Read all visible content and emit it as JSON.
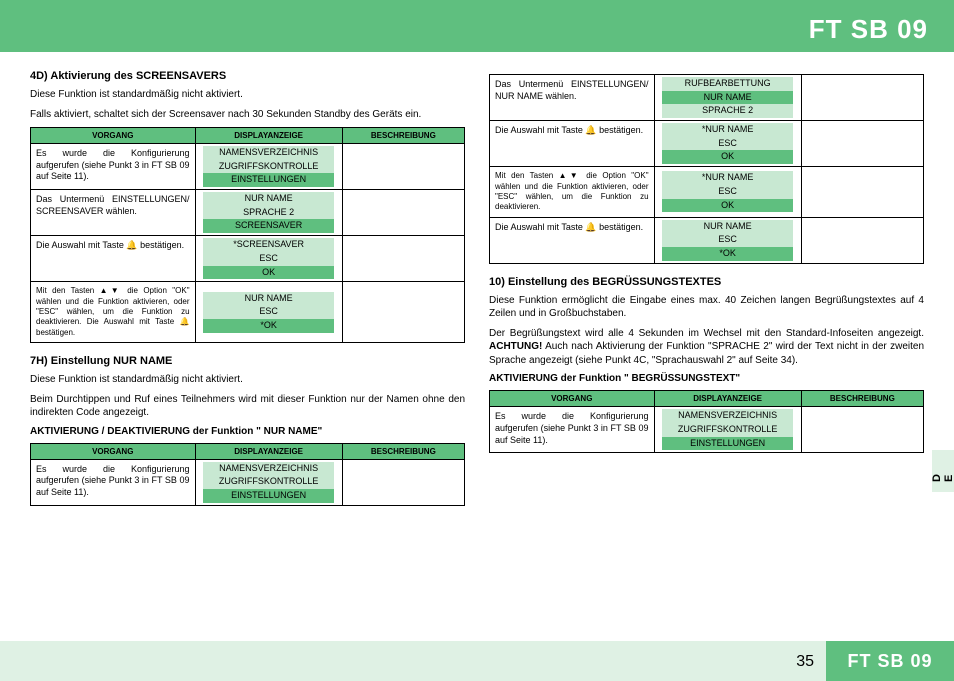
{
  "header": {
    "title": "FT SB 09"
  },
  "footer": {
    "page": "35",
    "title": "FT SB 09"
  },
  "sideTab": "D E",
  "colors": {
    "green": "#5fbf7f",
    "lightGreen": "#c8e8d2",
    "paleGreen": "#dff1e4"
  },
  "tableHead": {
    "a": "VORGANG",
    "b": "DISPLAYANZEIGE",
    "c": "BESCHREIBUNG"
  },
  "sec4d": {
    "title": "4D) Aktivierung des SCREENSAVERS",
    "p1": "Diese Funktion ist standardmäßig nicht aktiviert.",
    "p2": "Falls aktiviert, schaltet sich der Screensaver nach 30 Sekunden Standby des Geräts ein.",
    "rows": [
      {
        "a": "Es wurde die Konfigurierung aufgerufen (siehe Punkt 3 in FT SB 09 auf Seite 11).",
        "b": [
          {
            "t": "NAMENSVERZEICHNIS",
            "c": "light"
          },
          {
            "t": "ZUGRIFFSKONTROLLE",
            "c": "light"
          },
          {
            "t": "EINSTELLUNGEN",
            "c": "dark"
          }
        ]
      },
      {
        "a": "Das Untermenü EINSTELLUNGEN/ SCREENSAVER wählen.",
        "b": [
          {
            "t": "NUR NAME",
            "c": "light"
          },
          {
            "t": "SPRACHE 2",
            "c": "light"
          },
          {
            "t": "SCREENSAVER",
            "c": "dark"
          }
        ]
      },
      {
        "a": "Die Auswahl mit Taste 🔔 bestätigen.",
        "b": [
          {
            "t": "*SCREENSAVER",
            "c": "light"
          },
          {
            "t": "ESC",
            "c": "light"
          },
          {
            "t": "OK",
            "c": "dark"
          }
        ]
      },
      {
        "a": "Mit den Tasten ▲▼ die Option \"OK\" wählen und die Funktion aktivieren, oder \"ESC\" wählen, um die Funktion zu deaktivieren. Die Auswahl mit Taste 🔔 bestätigen.",
        "small": true,
        "b": [
          {
            "t": "NUR NAME",
            "c": "light"
          },
          {
            "t": "ESC",
            "c": "light"
          },
          {
            "t": "*OK",
            "c": "dark"
          }
        ]
      }
    ]
  },
  "sec7h": {
    "title": "7H) Einstellung NUR NAME",
    "p1": "Diese Funktion ist standardmäßig nicht aktiviert.",
    "p2": "Beim Durchtippen und Ruf eines Teilnehmers wird mit dieser Funktion nur der Namen ohne den indirekten Code angezeigt.",
    "sub": "AKTIVIERUNG / DEAKTIVIERUNG der Funktion \" NUR NAME\"",
    "rows": [
      {
        "a": "Es wurde die Konfigurierung aufgerufen (siehe Punkt 3 in FT SB 09 auf Seite 11).",
        "b": [
          {
            "t": "NAMENSVERZEICHNIS",
            "c": "light"
          },
          {
            "t": "ZUGRIFFSKONTROLLE",
            "c": "light"
          },
          {
            "t": "EINSTELLUNGEN",
            "c": "dark"
          }
        ]
      }
    ]
  },
  "rightTop": {
    "rows": [
      {
        "a": "Das Untermenü EINSTELLUNGEN/ NUR NAME wählen.",
        "b": [
          {
            "t": "RUFBEARBETTUNG",
            "c": "light"
          },
          {
            "t": "NUR NAME",
            "c": "dark"
          },
          {
            "t": "SPRACHE 2",
            "c": "light"
          }
        ]
      },
      {
        "a": "Die Auswahl mit Taste 🔔 bestätigen.",
        "b": [
          {
            "t": "*NUR NAME",
            "c": "light"
          },
          {
            "t": "ESC",
            "c": "light"
          },
          {
            "t": "OK",
            "c": "dark"
          }
        ]
      },
      {
        "a": "Mit den Tasten ▲▼ die Option \"OK\" wählen und die Funktion aktivieren, oder \"ESC\" wählen, um die Funktion zu deaktivieren.",
        "small": true,
        "b": [
          {
            "t": "*NUR NAME",
            "c": "light"
          },
          {
            "t": "ESC",
            "c": "light"
          },
          {
            "t": "OK",
            "c": "dark"
          }
        ]
      },
      {
        "a": "Die Auswahl mit Taste 🔔 bestätigen.",
        "b": [
          {
            "t": "NUR NAME",
            "c": "light"
          },
          {
            "t": "ESC",
            "c": "light"
          },
          {
            "t": "*OK",
            "c": "dark"
          }
        ]
      }
    ]
  },
  "sec10": {
    "title": "10) Einstellung des BEGRÜSSUNGSTEXTES",
    "p1": "Diese Funktion ermöglicht die Eingabe eines max. 40 Zeichen langen Begrüßungstextes auf 4 Zeilen und in Großbuchstaben.",
    "p2a": "Der Begrüßungstext wird alle 4 Sekunden im Wechsel mit den Standard-Infoseiten angezeigt. ",
    "p2warn": "ACHTUNG!",
    "p2b": " Auch nach Aktivierung der Funktion \"SPRACHE 2\" wird der Text nicht in der zweiten Sprache angezeigt (siehe Punkt 4C, \"Sprachauswahl 2\" auf Seite 34).",
    "sub": "AKTIVIERUNG der Funktion \" BEGRÜSSUNGSTEXT\"",
    "rows": [
      {
        "a": "Es wurde die Konfigurierung aufgerufen (siehe Punkt 3 in FT SB 09 auf Seite 11).",
        "b": [
          {
            "t": "NAMENSVERZEICHNIS",
            "c": "light"
          },
          {
            "t": "ZUGRIFFSKONTROLLE",
            "c": "light"
          },
          {
            "t": "EINSTELLUNGEN",
            "c": "dark"
          }
        ]
      }
    ]
  }
}
